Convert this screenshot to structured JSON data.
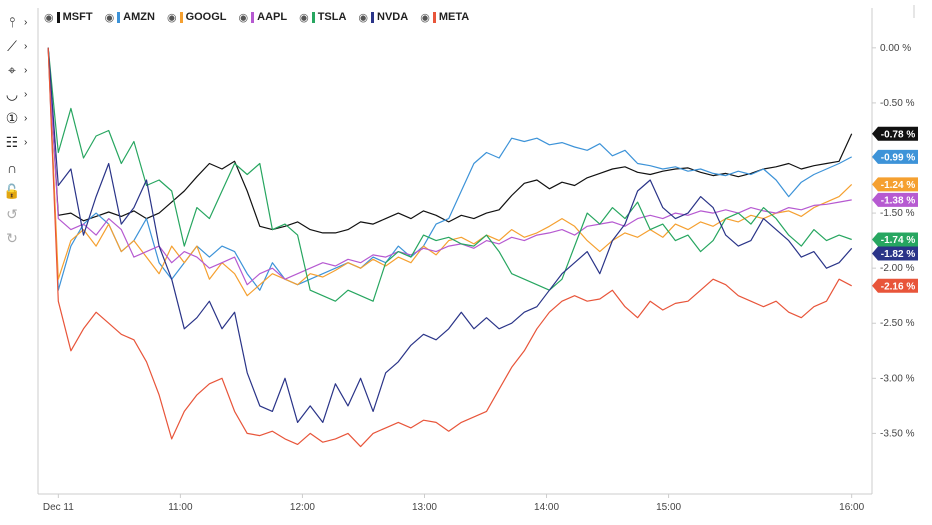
{
  "toolbar": {
    "tools": [
      {
        "name": "crosshair-tool",
        "glyph": "⫯",
        "has_menu": true,
        "enabled": true
      },
      {
        "name": "line-tools",
        "glyph": "⟋",
        "has_menu": true,
        "enabled": true
      },
      {
        "name": "shape-tools",
        "glyph": "⌖",
        "has_menu": true,
        "enabled": true
      },
      {
        "name": "curve-tools",
        "glyph": "◡",
        "has_menu": true,
        "enabled": true
      },
      {
        "name": "annotation-tools",
        "glyph": "①",
        "has_menu": true,
        "enabled": true
      },
      {
        "name": "measure-tools",
        "glyph": "☷",
        "has_menu": true,
        "enabled": true
      },
      {
        "name": "magnet-tool",
        "glyph": "∩",
        "has_menu": false,
        "enabled": true
      },
      {
        "name": "lock-tool",
        "glyph": "🔓",
        "has_menu": false,
        "enabled": true
      },
      {
        "name": "undo-tool",
        "glyph": "↺",
        "has_menu": false,
        "enabled": false
      },
      {
        "name": "redo-tool",
        "glyph": "↻",
        "has_menu": false,
        "enabled": false
      }
    ]
  },
  "colors": {
    "MSFT": "#111111",
    "AMZN": "#3d93d8",
    "GOOGL": "#f5a030",
    "AAPL": "#b65ad1",
    "TSLA": "#27a660",
    "NVDA": "#2a3488",
    "META": "#e8553a"
  },
  "chart_data": {
    "type": "line",
    "title": "",
    "xlabel": "",
    "ylabel": "",
    "x_ticks": [
      {
        "label": "Dec 11",
        "t": 0
      },
      {
        "label": "11:00",
        "t": 60
      },
      {
        "label": "12:00",
        "t": 120
      },
      {
        "label": "13:00",
        "t": 180
      },
      {
        "label": "14:00",
        "t": 240
      },
      {
        "label": "15:00",
        "t": 300
      },
      {
        "label": "16:00",
        "t": 390
      }
    ],
    "x_tick_labels": [
      "Dec 11",
      "11:00",
      "12:00",
      "13:00",
      "14:00",
      "15:00",
      "16:00"
    ],
    "y_ticks": [
      0.0,
      -0.5,
      -1.0,
      -1.5,
      -2.0,
      -2.5,
      -3.0,
      -3.5
    ],
    "y_tick_labels": [
      "0.00 %",
      "-0.50 %",
      "-1.00 %",
      "-1.50 %",
      "-2.00 %",
      "-2.50 %",
      "-3.00 %",
      "-3.50 %"
    ],
    "ylim": [
      -4.05,
      0.18
    ],
    "xlim": [
      -10,
      400
    ],
    "unit": "%",
    "grid": false,
    "legend_position": "top-left",
    "series": [
      {
        "name": "MSFT",
        "last_label": "-0.78 %",
        "last": -0.78,
        "values": [
          0.0,
          -1.52,
          -1.5,
          -1.57,
          -1.53,
          -1.49,
          -1.53,
          -1.48,
          -1.55,
          -1.5,
          -1.4,
          -1.3,
          -1.17,
          -1.05,
          -1.1,
          -1.03,
          -1.3,
          -1.62,
          -1.65,
          -1.62,
          -1.58,
          -1.65,
          -1.68,
          -1.68,
          -1.65,
          -1.58,
          -1.6,
          -1.55,
          -1.5,
          -1.55,
          -1.48,
          -1.52,
          -1.58,
          -1.52,
          -1.55,
          -1.5,
          -1.47,
          -1.34,
          -1.23,
          -1.2,
          -1.28,
          -1.22,
          -1.25,
          -1.18,
          -1.14,
          -1.1,
          -1.08,
          -1.13,
          -1.15,
          -1.12,
          -1.1,
          -1.09,
          -1.13,
          -1.16,
          -1.14,
          -1.17,
          -1.14,
          -1.1,
          -1.08,
          -1.05,
          -1.1,
          -1.07,
          -1.05,
          -1.03,
          -0.78
        ]
      },
      {
        "name": "AMZN",
        "last_label": "-0.99 %",
        "last": -0.99,
        "values": [
          0.0,
          -2.2,
          -1.8,
          -1.6,
          -1.5,
          -1.6,
          -1.85,
          -1.75,
          -1.55,
          -1.95,
          -2.1,
          -1.95,
          -1.8,
          -1.9,
          -1.8,
          -1.85,
          -2.05,
          -2.2,
          -1.95,
          -2.1,
          -2.15,
          -2.1,
          -2.05,
          -2.0,
          -1.95,
          -2.0,
          -1.9,
          -1.95,
          -1.8,
          -1.9,
          -1.8,
          -1.6,
          -1.55,
          -1.3,
          -1.05,
          -0.95,
          -1.0,
          -0.82,
          -0.85,
          -0.82,
          -0.88,
          -0.86,
          -0.9,
          -0.93,
          -0.87,
          -0.98,
          -0.93,
          -1.05,
          -1.07,
          -1.1,
          -1.08,
          -1.12,
          -1.1,
          -1.14,
          -1.16,
          -1.12,
          -1.15,
          -1.1,
          -1.2,
          -1.35,
          -1.22,
          -1.15,
          -1.1,
          -1.05,
          -0.99
        ]
      },
      {
        "name": "GOOGL",
        "last_label": "-1.24 %",
        "last": -1.24,
        "values": [
          0.0,
          -2.1,
          -1.75,
          -1.65,
          -1.8,
          -1.6,
          -1.85,
          -1.75,
          -1.9,
          -2.05,
          -1.8,
          -1.95,
          -1.8,
          -2.1,
          -1.95,
          -2.05,
          -2.25,
          -2.15,
          -2.05,
          -2.1,
          -2.15,
          -2.05,
          -2.08,
          -2.02,
          -1.95,
          -2.0,
          -1.92,
          -1.98,
          -1.9,
          -1.95,
          -1.8,
          -1.88,
          -1.75,
          -1.72,
          -1.78,
          -1.7,
          -1.75,
          -1.65,
          -1.72,
          -1.68,
          -1.62,
          -1.55,
          -1.62,
          -1.75,
          -1.85,
          -1.75,
          -1.68,
          -1.72,
          -1.65,
          -1.72,
          -1.6,
          -1.65,
          -1.58,
          -1.62,
          -1.55,
          -1.58,
          -1.52,
          -1.55,
          -1.5,
          -1.48,
          -1.53,
          -1.45,
          -1.4,
          -1.35,
          -1.24
        ]
      },
      {
        "name": "AAPL",
        "last_label": "-1.38 %",
        "last": -1.38,
        "values": [
          0.0,
          -1.55,
          -1.65,
          -1.6,
          -1.7,
          -1.55,
          -1.65,
          -1.9,
          -1.85,
          -1.8,
          -1.95,
          -1.85,
          -1.9,
          -2.0,
          -1.95,
          -1.9,
          -2.15,
          -2.05,
          -2.0,
          -2.1,
          -2.05,
          -2.0,
          -1.95,
          -1.98,
          -1.92,
          -1.95,
          -1.88,
          -1.9,
          -1.85,
          -1.88,
          -1.82,
          -1.85,
          -1.8,
          -1.78,
          -1.82,
          -1.75,
          -1.78,
          -1.72,
          -1.75,
          -1.7,
          -1.68,
          -1.65,
          -1.7,
          -1.62,
          -1.6,
          -1.58,
          -1.62,
          -1.55,
          -1.52,
          -1.55,
          -1.5,
          -1.52,
          -1.48,
          -1.5,
          -1.47,
          -1.5,
          -1.45,
          -1.48,
          -1.5,
          -1.45,
          -1.47,
          -1.43,
          -1.42,
          -1.4,
          -1.38
        ]
      },
      {
        "name": "TSLA",
        "last_label": "-1.74 %",
        "last": -1.74,
        "values": [
          0.0,
          -0.95,
          -0.55,
          -1.0,
          -0.8,
          -0.75,
          -1.05,
          -0.85,
          -1.25,
          -1.2,
          -1.3,
          -1.8,
          -1.45,
          -1.55,
          -1.3,
          -1.05,
          -1.15,
          -1.05,
          -1.65,
          -1.6,
          -1.7,
          -2.2,
          -2.25,
          -2.3,
          -2.2,
          -2.25,
          -2.3,
          -1.95,
          -1.85,
          -1.9,
          -1.7,
          -1.75,
          -1.72,
          -1.78,
          -1.8,
          -1.7,
          -1.85,
          -2.05,
          -2.1,
          -2.15,
          -2.2,
          -2.1,
          -1.8,
          -1.5,
          -1.6,
          -1.45,
          -1.55,
          -1.4,
          -1.65,
          -1.6,
          -1.75,
          -1.7,
          -1.85,
          -1.75,
          -1.55,
          -1.5,
          -1.6,
          -1.45,
          -1.55,
          -1.7,
          -1.8,
          -1.65,
          -1.75,
          -1.7,
          -1.74
        ]
      },
      {
        "name": "NVDA",
        "last_label": "-1.82 %",
        "last": -1.82,
        "values": [
          0.0,
          -1.25,
          -1.1,
          -1.7,
          -1.35,
          -1.05,
          -1.6,
          -1.45,
          -1.2,
          -1.8,
          -2.1,
          -2.55,
          -2.45,
          -2.3,
          -2.55,
          -2.4,
          -2.95,
          -3.25,
          -3.3,
          -3.0,
          -3.4,
          -3.25,
          -3.4,
          -3.05,
          -3.25,
          -3.0,
          -3.3,
          -2.95,
          -2.85,
          -2.7,
          -2.6,
          -2.65,
          -2.55,
          -2.4,
          -2.55,
          -2.45,
          -2.55,
          -2.5,
          -2.4,
          -2.35,
          -2.2,
          -2.05,
          -1.95,
          -1.85,
          -2.05,
          -1.75,
          -1.6,
          -1.3,
          -1.2,
          -1.45,
          -1.55,
          -1.5,
          -1.35,
          -1.45,
          -1.7,
          -1.8,
          -1.75,
          -1.55,
          -1.65,
          -1.75,
          -1.9,
          -1.85,
          -2.0,
          -1.95,
          -1.82
        ]
      },
      {
        "name": "META",
        "last_label": "-2.16 %",
        "last": -2.16,
        "values": [
          0.0,
          -2.3,
          -2.75,
          -2.55,
          -2.4,
          -2.5,
          -2.6,
          -2.65,
          -2.85,
          -3.15,
          -3.55,
          -3.3,
          -3.15,
          -3.05,
          -3.0,
          -3.3,
          -3.5,
          -3.52,
          -3.48,
          -3.55,
          -3.6,
          -3.5,
          -3.58,
          -3.55,
          -3.5,
          -3.62,
          -3.5,
          -3.45,
          -3.4,
          -3.45,
          -3.38,
          -3.4,
          -3.48,
          -3.4,
          -3.35,
          -3.3,
          -3.1,
          -2.9,
          -2.75,
          -2.55,
          -2.4,
          -2.3,
          -2.25,
          -2.3,
          -2.28,
          -2.2,
          -2.35,
          -2.45,
          -2.3,
          -2.38,
          -2.32,
          -2.3,
          -2.2,
          -2.1,
          -2.15,
          -2.25,
          -2.3,
          -2.35,
          -2.3,
          -2.4,
          -2.45,
          -2.35,
          -2.3,
          -2.1,
          -2.16
        ]
      }
    ]
  }
}
